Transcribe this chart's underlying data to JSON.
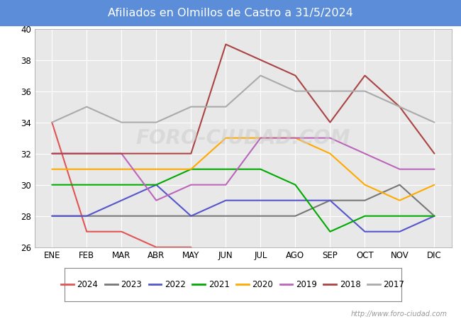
{
  "title": "Afiliados en Olmillos de Castro a 31/5/2024",
  "title_bg_color": "#5b8dd9",
  "title_text_color": "white",
  "ylim": [
    26,
    40
  ],
  "yticks": [
    26,
    28,
    30,
    32,
    34,
    36,
    38,
    40
  ],
  "months": [
    "ENE",
    "FEB",
    "MAR",
    "ABR",
    "MAY",
    "JUN",
    "JUL",
    "AGO",
    "SEP",
    "OCT",
    "NOV",
    "DIC"
  ],
  "watermark": "http://www.foro-ciudad.com",
  "series": {
    "2024": {
      "color": "#e05555",
      "data": [
        34,
        27,
        27,
        26,
        26,
        null,
        null,
        null,
        null,
        null,
        null,
        null
      ]
    },
    "2023": {
      "color": "#777777",
      "data": [
        28,
        28,
        28,
        28,
        28,
        28,
        28,
        28,
        29,
        29,
        30,
        28
      ]
    },
    "2022": {
      "color": "#5555cc",
      "data": [
        28,
        28,
        29,
        30,
        28,
        29,
        29,
        29,
        29,
        27,
        27,
        28
      ]
    },
    "2021": {
      "color": "#00aa00",
      "data": [
        30,
        30,
        30,
        30,
        31,
        31,
        31,
        30,
        27,
        28,
        28,
        28
      ]
    },
    "2020": {
      "color": "#ffaa00",
      "data": [
        31,
        31,
        31,
        31,
        31,
        33,
        33,
        33,
        32,
        30,
        29,
        30
      ]
    },
    "2019": {
      "color": "#bb66bb",
      "data": [
        32,
        32,
        32,
        29,
        30,
        30,
        33,
        33,
        33,
        32,
        31,
        31
      ]
    },
    "2018": {
      "color": "#aa4444",
      "data": [
        32,
        32,
        32,
        32,
        32,
        39,
        38,
        37,
        34,
        37,
        35,
        32
      ]
    },
    "2017": {
      "color": "#aaaaaa",
      "data": [
        34,
        35,
        34,
        34,
        35,
        35,
        37,
        36,
        36,
        36,
        35,
        34
      ]
    }
  },
  "legend_order": [
    "2024",
    "2023",
    "2022",
    "2021",
    "2020",
    "2019",
    "2018",
    "2017"
  ],
  "plot_bg_color": "#e8e8e8",
  "chart_bg_color": "#d8d8d8",
  "grid_color": "white",
  "linewidth": 1.5
}
